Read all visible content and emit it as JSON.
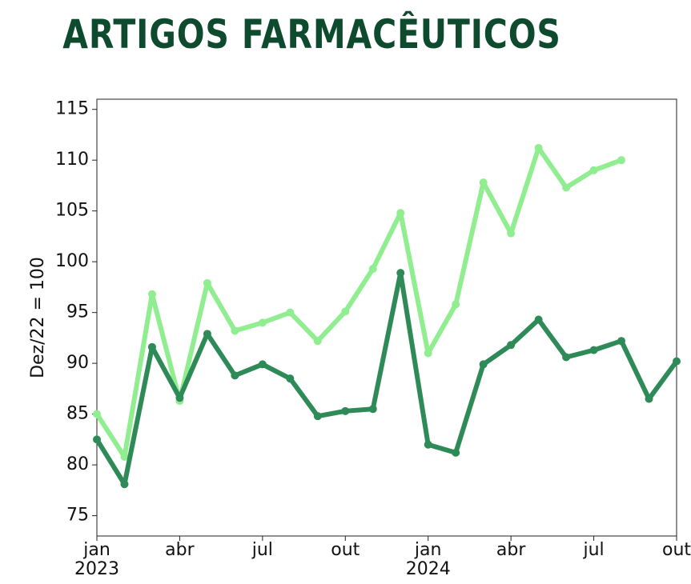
{
  "chart_data": {
    "type": "line",
    "title": "ARTIGOS FARMACÊUTICOS",
    "y_label": "Dez/22 = 100",
    "categories": [
      "jan 2023",
      null,
      null,
      "abr",
      null,
      null,
      "jul",
      null,
      null,
      "out",
      null,
      null,
      "jan 2024",
      null,
      null,
      "abr",
      null,
      null,
      "jul",
      null,
      null,
      "out"
    ],
    "series": [
      {
        "color": "#90ee90",
        "values": [
          85.0,
          80.8,
          96.8,
          86.3,
          97.9,
          93.2,
          94.0,
          95.0,
          92.2,
          95.1,
          99.3,
          104.8,
          91.0,
          95.8,
          107.8,
          102.8,
          111.2,
          107.3,
          109.0,
          110.0,
          null,
          null
        ]
      },
      {
        "color": "#2e8b57",
        "values": [
          82.5,
          78.1,
          91.6,
          86.6,
          92.9,
          88.8,
          89.9,
          88.5,
          84.8,
          85.3,
          85.5,
          98.9,
          82.0,
          81.2,
          89.9,
          91.8,
          94.3,
          90.6,
          91.3,
          92.2,
          86.5,
          90.2
        ]
      }
    ],
    "ylim": [
      73,
      116
    ],
    "yticks": [
      75,
      80,
      85,
      90,
      95,
      100,
      105,
      110,
      115
    ],
    "grid": false
  }
}
